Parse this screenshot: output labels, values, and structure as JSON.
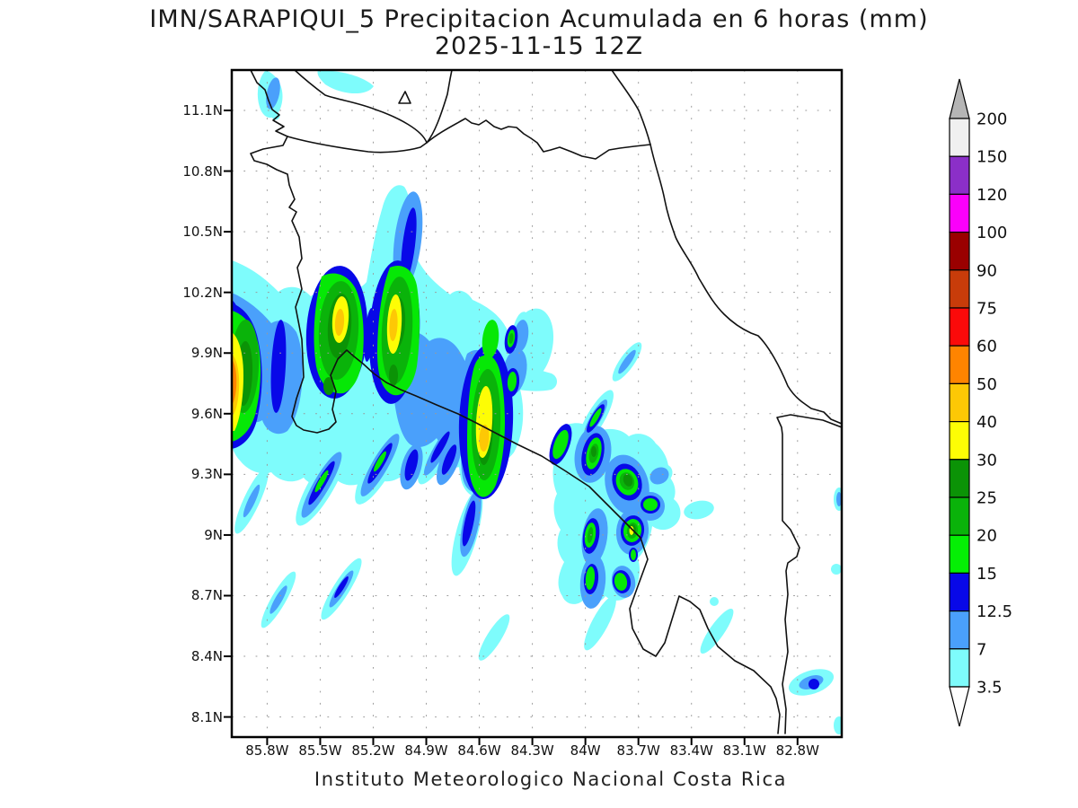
{
  "title": {
    "line1": "IMN/SARAPIQUI_5 Precipitacion Acumulada en 6 horas (mm)",
    "line2": "2025-11-15 12Z"
  },
  "footer": {
    "text": "Instituto Meteorologico Nacional Costa Rica"
  },
  "axes": {
    "lat_labels": [
      "11.1N",
      "10.8N",
      "10.5N",
      "10.2N",
      "9.9N",
      "9.6N",
      "9.3N",
      "9N",
      "8.7N",
      "8.4N",
      "8.1N"
    ],
    "lon_labels": [
      "85.8W",
      "85.5W",
      "85.2W",
      "84.9W",
      "84.6W",
      "84.3W",
      "84W",
      "83.7W",
      "83.4W",
      "83.1W",
      "82.8W"
    ]
  },
  "colorbar": {
    "units": "mm",
    "labels": [
      "200",
      "150",
      "120",
      "100",
      "90",
      "75",
      "60",
      "50",
      "40",
      "30",
      "25",
      "20",
      "15",
      "12.5",
      "7",
      "3.5"
    ],
    "segment_colors_top_to_bottom": [
      "#f0f0f0",
      "#8b2fc8",
      "#fa00fa",
      "#9a0000",
      "#c83c0a",
      "#fb0a0a",
      "#ff8400",
      "#fdc805",
      "#fdfd05",
      "#0b9306",
      "#0ab30a",
      "#05ef05",
      "#0808e8",
      "#4aa0fb",
      "#7efcfc"
    ],
    "arrow_top_color": "#b5b5b5",
    "arrow_bottom_color": "#ffffff"
  }
}
